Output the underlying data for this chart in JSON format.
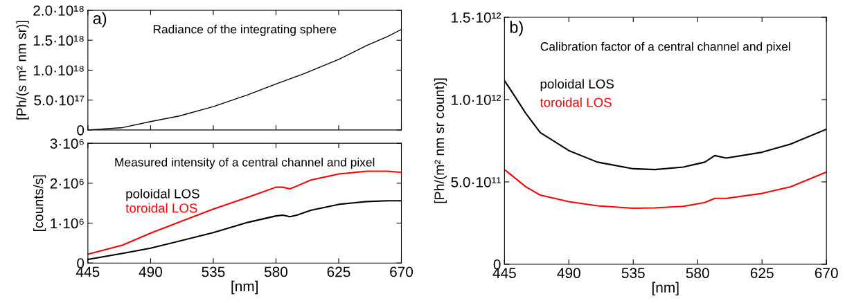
{
  "chart_data": [
    {
      "type": "line",
      "title": "Radiance of the integrating sphere",
      "ylabel": "[Ph/(s m² nm sr)]",
      "annotations": [
        "a)"
      ],
      "x": [
        445,
        470,
        490,
        510,
        535,
        560,
        580,
        600,
        625,
        645,
        660,
        670
      ],
      "series": [
        {
          "color": "#000000",
          "values": [
            0,
            4e+16,
            1.4e+17,
            2.3e+17,
            3.9e+17,
            5.9e+17,
            7.7e+17,
            9.4e+17,
            1.18e+18,
            1.41e+18,
            1.56e+18,
            1.68e+18
          ]
        }
      ],
      "xlim": [
        445,
        670
      ],
      "xticks": [
        445,
        490,
        535,
        580,
        625,
        670
      ],
      "ylim": [
        0,
        2e+18
      ],
      "yticks": [
        0,
        {
          "value": 5e+17,
          "label": "5.0·10¹⁷"
        },
        {
          "value": 1e+18,
          "label": "1.0·10¹⁸"
        },
        {
          "value": 1.5e+18,
          "label": "1.5·10¹⁸"
        },
        {
          "value": 2e+18,
          "label": "2.0·10¹⁸"
        }
      ],
      "tick_labels": "y",
      "grid": false
    },
    {
      "type": "line",
      "title": "Measured intensity of a central channel and pixel",
      "ylabel": "[counts/s]",
      "xlabel": "[nm]",
      "x": [
        445,
        470,
        490,
        535,
        560,
        580,
        585,
        590,
        595,
        605,
        625,
        645,
        660,
        670
      ],
      "series": [
        {
          "name": "poloidal LOS",
          "color": "#000000",
          "values": [
            90000.0,
            240000.0,
            370000.0,
            760000.0,
            1020000.0,
            1180000.0,
            1200000.0,
            1160000.0,
            1200000.0,
            1320000.0,
            1470000.0,
            1540000.0,
            1560000.0,
            1560000.0
          ]
        },
        {
          "name": "toroidal LOS",
          "color": "#ff0000",
          "values": [
            220000.0,
            450000.0,
            750000.0,
            1350000.0,
            1650000.0,
            1900000.0,
            1900000.0,
            1860000.0,
            1930000.0,
            2080000.0,
            2230000.0,
            2300000.0,
            2300000.0,
            2270000.0
          ]
        }
      ],
      "xlim": [
        445,
        670
      ],
      "xticks": [
        445,
        490,
        535,
        580,
        625,
        670
      ],
      "ylim": [
        0,
        3000000.0
      ],
      "yticks": [
        0,
        {
          "value": 1000000.0,
          "label": "1·10⁶"
        },
        {
          "value": 2000000.0,
          "label": "2·10⁶"
        },
        {
          "value": 3000000.0,
          "label": "3·10⁶"
        }
      ],
      "grid": false
    },
    {
      "type": "line",
      "title": "Calibration factor of a central channel and pixel",
      "ylabel": "[Ph/(m² nm sr count)]",
      "xlabel": "[nm]",
      "annotations": [
        "b)"
      ],
      "x": [
        445,
        450,
        460,
        470,
        490,
        510,
        535,
        550,
        570,
        585,
        592,
        600,
        625,
        645,
        670
      ],
      "series": [
        {
          "name": "poloidal LOS",
          "color": "#000000",
          "values": [
            1115000000000.0,
            1050000000000.0,
            915000000000.0,
            800000000000.0,
            690000000000.0,
            620000000000.0,
            580000000000.0,
            575000000000.0,
            590000000000.0,
            620000000000.0,
            660000000000.0,
            645000000000.0,
            680000000000.0,
            730000000000.0,
            820000000000.0
          ]
        },
        {
          "name": "toroidal LOS",
          "color": "#ff0000",
          "values": [
            575000000000.0,
            540000000000.0,
            470000000000.0,
            420000000000.0,
            380000000000.0,
            355000000000.0,
            340000000000.0,
            342000000000.0,
            352000000000.0,
            375000000000.0,
            400000000000.0,
            400000000000.0,
            430000000000.0,
            470000000000.0,
            560000000000.0
          ]
        }
      ],
      "xlim": [
        445,
        670
      ],
      "xticks": [
        445,
        490,
        535,
        580,
        625,
        670
      ],
      "ylim": [
        0,
        1500000000000.0
      ],
      "yticks": [
        0,
        {
          "value": 500000000000.0,
          "label": "5.0·10¹¹"
        },
        {
          "value": 1000000000000.0,
          "label": "1.0·10¹²"
        },
        {
          "value": 1500000000000.0,
          "label": "1.5·10¹²"
        }
      ],
      "grid": false
    }
  ]
}
